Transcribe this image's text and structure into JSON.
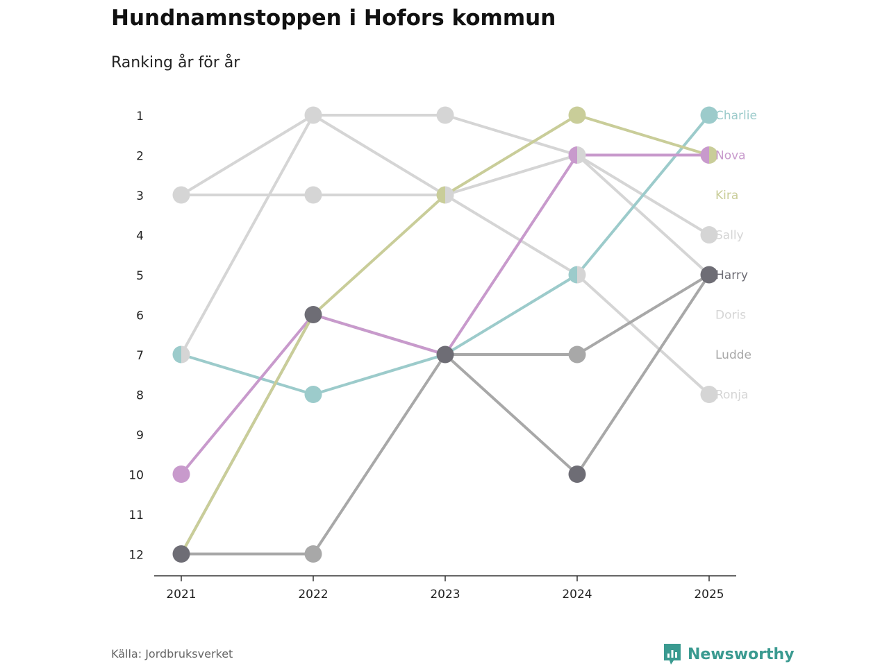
{
  "header": {
    "title": "Hundnamnstoppen i Hofors kommun",
    "subtitle": "Ranking år för år"
  },
  "footer": {
    "source": "Källa: Jordbruksverket",
    "brand": "Newsworthy"
  },
  "colors": {
    "Charlie": "#9ccbcb",
    "Nova": "#c89acc",
    "Kira": "#c9cd99",
    "Sally": "#d5d5d5",
    "Harry": "#6e6d75",
    "Doris": "#d5d5d5",
    "Ludde": "#a8a8a8",
    "Ronja": "#d5d5d5",
    "Ludde_line": "#a8a8a8",
    "Harry_line": "#a8a8a8",
    "axis": "#333333",
    "brand": "#3a9a90"
  },
  "chart_data": {
    "type": "line",
    "title": "Hundnamnstoppen i Hofors kommun",
    "subtitle": "Ranking år för år",
    "x": [
      "2021",
      "2022",
      "2023",
      "2024",
      "2025"
    ],
    "y_ticks": [
      "1",
      "2",
      "3",
      "4",
      "5",
      "6",
      "7",
      "8",
      "9",
      "10",
      "11",
      "12"
    ],
    "ylim": [
      1,
      12
    ],
    "y_inverted": true,
    "series": [
      {
        "name": "Sally",
        "values": [
          3,
          1,
          1,
          2,
          4
        ]
      },
      {
        "name": "Doris",
        "values": [
          3,
          3,
          3,
          2,
          5
        ]
      },
      {
        "name": "Ronja",
        "values": [
          7,
          1,
          3,
          5,
          8
        ]
      },
      {
        "name": "Ludde",
        "values": [
          12,
          12,
          7,
          7,
          5
        ]
      },
      {
        "name": "Harry",
        "values": [
          12,
          6,
          7,
          10,
          5
        ]
      },
      {
        "name": "Charlie",
        "values": [
          7,
          8,
          7,
          5,
          1
        ]
      },
      {
        "name": "Nova",
        "values": [
          10,
          6,
          7,
          2,
          2
        ]
      },
      {
        "name": "Kira",
        "values": [
          12,
          6,
          3,
          1,
          2
        ]
      }
    ],
    "end_labels": [
      "Charlie",
      "Nova",
      "Kira",
      "Sally",
      "Harry",
      "Doris",
      "Ludde",
      "Ronja"
    ]
  }
}
